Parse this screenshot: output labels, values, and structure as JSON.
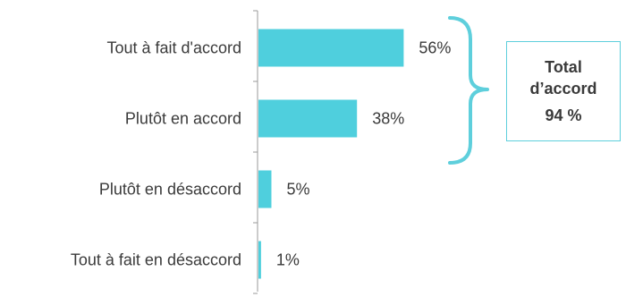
{
  "chart_data": {
    "type": "bar",
    "orientation": "horizontal",
    "categories": [
      "Tout à fait d'accord",
      "Plutôt en accord",
      "Plutôt en désaccord",
      "Tout à fait en désaccord"
    ],
    "values": [
      56,
      38,
      5,
      1
    ],
    "value_labels": [
      "56%",
      "38%",
      "5%",
      "1%"
    ],
    "xlim": [
      0,
      100
    ],
    "grid": false,
    "legend": "none",
    "bar_color": "#4fcfdd",
    "annotation": {
      "brace_covers": [
        "Tout à fait d'accord",
        "Plutôt en accord"
      ],
      "line1": "Total",
      "line2": "d’accord",
      "line3": "94 %",
      "color": "#5ecfdc"
    }
  }
}
